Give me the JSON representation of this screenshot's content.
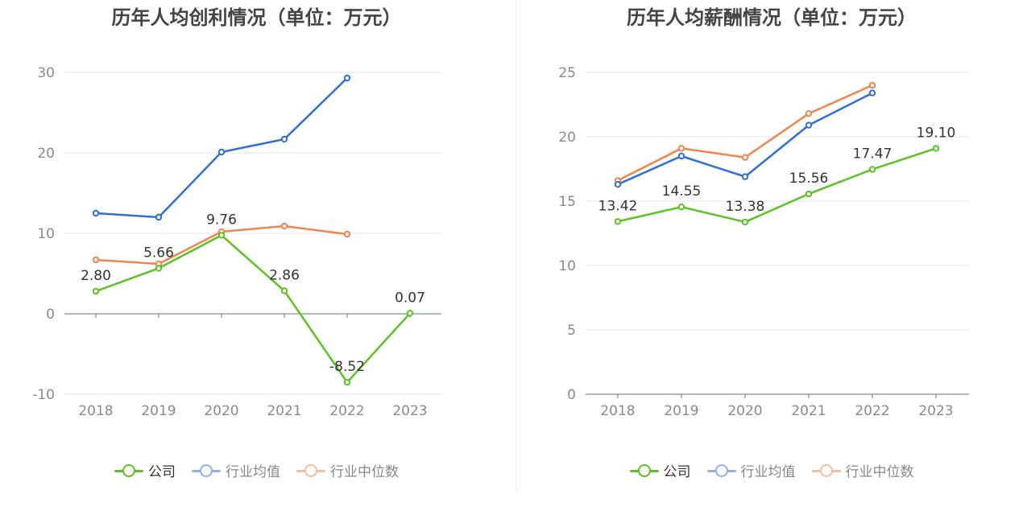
{
  "chart_data": [
    {
      "type": "line",
      "title": "历年人均创利情况（单位：万元）",
      "categories": [
        "2018",
        "2019",
        "2020",
        "2021",
        "2022",
        "2023"
      ],
      "ylim": [
        -10,
        30
      ],
      "yticks": [
        -10,
        0,
        10,
        20,
        30
      ],
      "grid": true,
      "legend": "bottom",
      "series": [
        {
          "name": "公司",
          "color": "#5cc123",
          "values": [
            2.8,
            5.66,
            9.76,
            2.86,
            -8.52,
            0.07
          ],
          "labels": [
            "2.80",
            "5.66",
            "9.76",
            "2.86",
            "-8.52",
            "0.07"
          ]
        },
        {
          "name": "行业均值",
          "color": "#2f6fd8",
          "values": [
            12.5,
            12.0,
            20.1,
            21.7,
            29.3,
            null
          ]
        },
        {
          "name": "行业中位数",
          "color": "#f0844e",
          "values": [
            6.7,
            6.2,
            10.2,
            10.9,
            9.9,
            null
          ]
        }
      ]
    },
    {
      "type": "line",
      "title": "历年人均薪酬情况（单位：万元）",
      "categories": [
        "2018",
        "2019",
        "2020",
        "2021",
        "2022",
        "2023"
      ],
      "ylim": [
        0,
        25
      ],
      "yticks": [
        0,
        5,
        10,
        15,
        20,
        25
      ],
      "grid": true,
      "legend": "bottom",
      "series": [
        {
          "name": "公司",
          "color": "#5cc123",
          "values": [
            13.42,
            14.55,
            13.38,
            15.56,
            17.47,
            19.1
          ],
          "labels": [
            "13.42",
            "14.55",
            "13.38",
            "15.56",
            "17.47",
            "19.10"
          ]
        },
        {
          "name": "行业均值",
          "color": "#2f6fd8",
          "values": [
            16.3,
            18.5,
            16.9,
            20.9,
            23.4,
            null
          ]
        },
        {
          "name": "行业中位数",
          "color": "#f0844e",
          "values": [
            16.6,
            19.1,
            18.4,
            21.8,
            24.0,
            null
          ]
        }
      ]
    }
  ],
  "legend_colors": {
    "公司": "#5cc123",
    "行业均值": "#8fb1ea",
    "行业中位数": "#f7bca0"
  }
}
